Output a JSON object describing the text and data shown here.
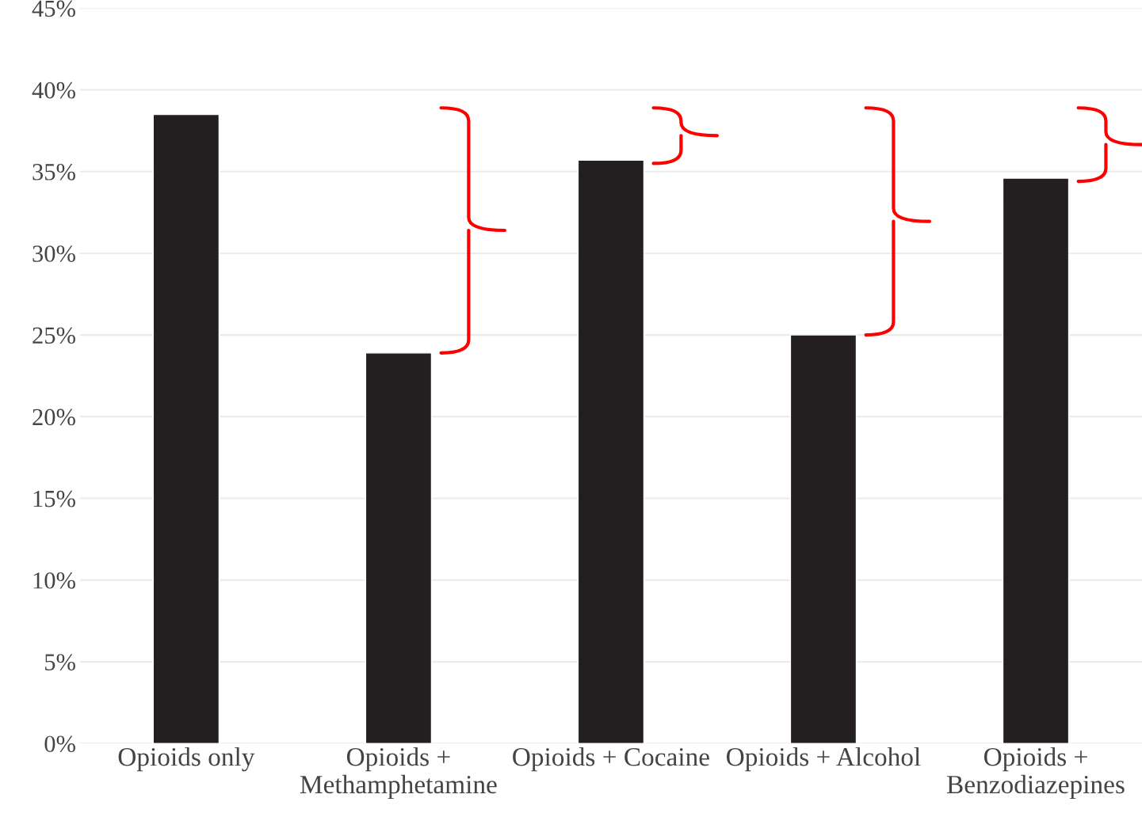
{
  "chart_data": {
    "type": "bar",
    "categories": [
      "Opioids only",
      "Opioids +\nMethamphetamine",
      "Opioids + Cocaine",
      "Opioids + Alcohol",
      "Opioids +\nBenzodiazepines"
    ],
    "values": [
      38.5,
      23.9,
      35.7,
      25.0,
      34.6
    ],
    "color": "#231f20",
    "ylim": [
      0,
      45
    ],
    "yticks": [
      {
        "value": 0,
        "label": "0%"
      },
      {
        "value": 5,
        "label": "5%"
      },
      {
        "value": 10,
        "label": "10%"
      },
      {
        "value": 15,
        "label": "15%"
      },
      {
        "value": 20,
        "label": "20%"
      },
      {
        "value": 25,
        "label": "25%"
      },
      {
        "value": 30,
        "label": "30%"
      },
      {
        "value": 35,
        "label": "35%"
      },
      {
        "value": 40,
        "label": "40%"
      },
      {
        "value": 45,
        "label": "45%"
      }
    ],
    "grid": "y"
  }
}
